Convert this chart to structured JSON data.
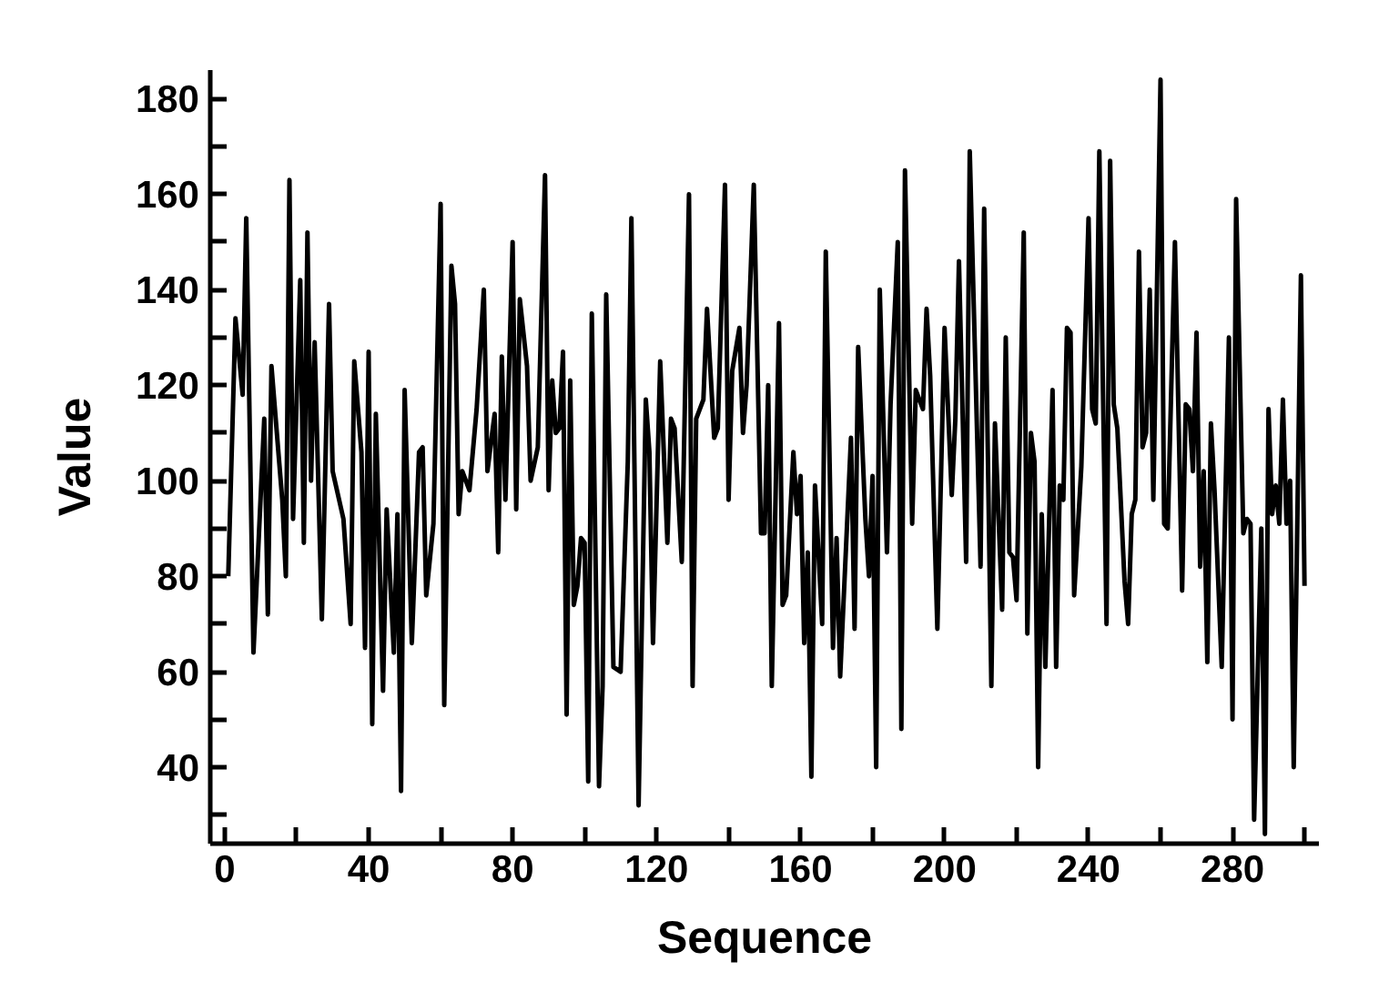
{
  "chart_data": {
    "type": "line",
    "xlabel": "Sequence",
    "ylabel": "Value",
    "line_style": "solid",
    "xlim": [
      -4,
      304
    ],
    "ylim": [
      24,
      186
    ],
    "xticks": [
      0,
      {
        "value": 20,
        "label": null
      },
      40,
      {
        "value": 60,
        "label": null
      },
      80,
      {
        "value": 100,
        "label": null
      },
      120,
      {
        "value": 140,
        "label": null
      },
      160,
      {
        "value": 180,
        "label": null
      },
      200,
      {
        "value": 220,
        "label": null
      },
      240,
      {
        "value": 260,
        "label": null
      },
      280,
      {
        "value": 300,
        "label": null
      }
    ],
    "yticks": [
      {
        "value": 30,
        "label": null
      },
      40,
      {
        "value": 50,
        "label": null
      },
      60,
      {
        "value": 70,
        "label": null
      },
      80,
      {
        "value": 90,
        "label": null
      },
      100,
      {
        "value": 110,
        "label": null
      },
      120,
      {
        "value": 130,
        "label": null
      },
      140,
      {
        "value": 150,
        "label": null
      },
      160,
      {
        "value": 170,
        "label": null
      },
      180
    ],
    "x": [
      1,
      3,
      5,
      6,
      8,
      11,
      12,
      13,
      16,
      17,
      18,
      19,
      21,
      22,
      23,
      24,
      25,
      27,
      29,
      30,
      33,
      35,
      36,
      38,
      39,
      40,
      41,
      42,
      44,
      45,
      47,
      48,
      49,
      50,
      52,
      54,
      55,
      56,
      58,
      60,
      61,
      63,
      64,
      65,
      66,
      68,
      70,
      72,
      73,
      75,
      76,
      77,
      78,
      80,
      81,
      82,
      84,
      85,
      87,
      89,
      90,
      91,
      92,
      93,
      94,
      95,
      96,
      97,
      98,
      99,
      100,
      101,
      102,
      104,
      105,
      106,
      108,
      110,
      112,
      113,
      115,
      117,
      118,
      119,
      121,
      123,
      124,
      125,
      127,
      129,
      130,
      131,
      133,
      134,
      136,
      137,
      139,
      140,
      141,
      143,
      144,
      145,
      147,
      149,
      150,
      151,
      152,
      154,
      155,
      156,
      158,
      159,
      160,
      161,
      162,
      163,
      164,
      166,
      167,
      169,
      170,
      171,
      174,
      175,
      176,
      178,
      179,
      180,
      181,
      182,
      184,
      185,
      187,
      188,
      189,
      191,
      192,
      194,
      195,
      196,
      198,
      200,
      202,
      203,
      204,
      206,
      207,
      210,
      211,
      213,
      214,
      216,
      217,
      218,
      219,
      220,
      222,
      223,
      224,
      225,
      226,
      227,
      228,
      230,
      231,
      232,
      233,
      234,
      235,
      236,
      238,
      240,
      241,
      242,
      243,
      245,
      246,
      247,
      248,
      250,
      251,
      252,
      253,
      254,
      255,
      256,
      257,
      258,
      260,
      261,
      262,
      264,
      266,
      267,
      268,
      269,
      270,
      271,
      272,
      273,
      274,
      275,
      277,
      279,
      280,
      281,
      283,
      284,
      285,
      286,
      288,
      289,
      290,
      291,
      292,
      293,
      294,
      295,
      296,
      297,
      299,
      300
    ],
    "series": [
      {
        "color": "#000000",
        "values": [
          80,
          134,
          118,
          155,
          64,
          113,
          72,
          124,
          96,
          80,
          163,
          92,
          142,
          87,
          152,
          100,
          129,
          71,
          137,
          102,
          92,
          70,
          125,
          106,
          65,
          127,
          49,
          114,
          56,
          94,
          64,
          93,
          35,
          119,
          66,
          106,
          107,
          76,
          91,
          158,
          53,
          145,
          137,
          93,
          102,
          98,
          115,
          140,
          102,
          114,
          85,
          126,
          96,
          150,
          94,
          138,
          124,
          100,
          107,
          164,
          98,
          121,
          110,
          111,
          127,
          51,
          121,
          74,
          78,
          88,
          87,
          37,
          135,
          36,
          57,
          139,
          61,
          60,
          104,
          155,
          32,
          117,
          106,
          66,
          125,
          87,
          113,
          111,
          83,
          160,
          57,
          113,
          117,
          136,
          109,
          111,
          162,
          96,
          123,
          132,
          110,
          120,
          162,
          89,
          89,
          120,
          57,
          133,
          74,
          76,
          106,
          93,
          101,
          66,
          85,
          38,
          99,
          70,
          148,
          65,
          88,
          59,
          109,
          69,
          128,
          92,
          80,
          101,
          40,
          140,
          85,
          116,
          150,
          48,
          165,
          91,
          119,
          115,
          136,
          122,
          69,
          132,
          97,
          113,
          146,
          83,
          169,
          82,
          157,
          57,
          112,
          73,
          130,
          85,
          84,
          75,
          152,
          68,
          110,
          104,
          40,
          93,
          61,
          119,
          61,
          99,
          96,
          132,
          131,
          76,
          103,
          155,
          115,
          112,
          169,
          70,
          167,
          116,
          111,
          79,
          70,
          93,
          96,
          148,
          107,
          110,
          140,
          96,
          184,
          91,
          90,
          150,
          77,
          116,
          115,
          102,
          131,
          82,
          102,
          62,
          112,
          98,
          61,
          130,
          50,
          159,
          89,
          92,
          91,
          29,
          90,
          26,
          115,
          93,
          99,
          91,
          117,
          91,
          100,
          40,
          143,
          78
        ]
      }
    ]
  }
}
